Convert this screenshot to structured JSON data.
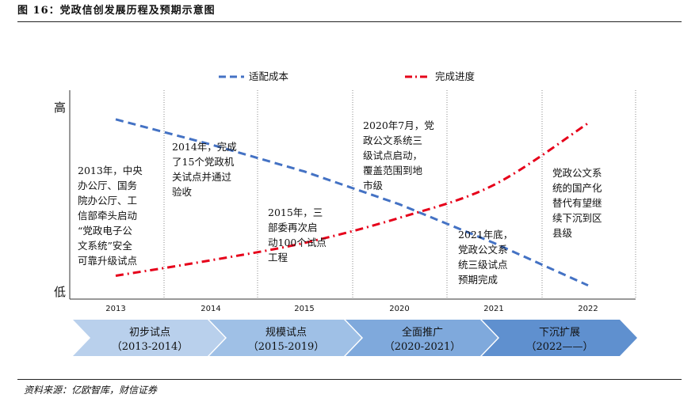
{
  "figure_title": "图 16：党政信创发展历程及预期示意图",
  "source": "资料来源：亿欧智库，财信证券",
  "chart_data": {
    "type": "line",
    "x": [
      "2013",
      "2014",
      "2015",
      "2020",
      "2021",
      "2022"
    ],
    "y_axis_labels": {
      "high": "高",
      "low": "低"
    },
    "series": [
      {
        "name": "适配成本",
        "color": "#4472C4",
        "style": "dashed",
        "values": [
          0.89,
          0.76,
          0.62,
          0.45,
          0.25,
          0.03
        ]
      },
      {
        "name": "完成进度",
        "color": "#E6001A",
        "style": "dash-dot",
        "values": [
          0.08,
          0.16,
          0.25,
          0.38,
          0.55,
          0.87
        ]
      }
    ],
    "annotations": [
      {
        "lines": [
          "2013年，中央",
          "办公厅、国务",
          "院办公厅、工",
          "信部牵头启动",
          "“党政电子公",
          "文系统”安全",
          "可靠升级试点"
        ]
      },
      {
        "lines": [
          "2014年，完成",
          "了15个党政机",
          "关试点并通过",
          "验收"
        ]
      },
      {
        "lines": [
          "2015年，三",
          "部委再次启",
          "动100个试点",
          "工程"
        ]
      },
      {
        "lines": [
          "2020年7月，党",
          "政公文系统三",
          "级试点启动，",
          "覆盖范围到地",
          "市级"
        ]
      },
      {
        "lines": [
          "2021年底，",
          "党政公文系",
          "统三级试点",
          "预期完成"
        ]
      },
      {
        "lines": [
          "党政公文系",
          "统的国产化",
          "替代有望继",
          "续下沉到区",
          "县级"
        ]
      }
    ],
    "phases": [
      {
        "name": "初步试点",
        "period": "（2013-2014）",
        "color": "#B9D0EC"
      },
      {
        "name": "规模试点",
        "period": "（2015-2019）",
        "color": "#9FC0E6"
      },
      {
        "name": "全面推广",
        "period": "（2020-2021）",
        "color": "#7FA9DC"
      },
      {
        "name": "下沉扩展",
        "period": "（2022——）",
        "color": "#5F90CF"
      }
    ],
    "grid": "vertical dotted separators",
    "legend_position": "top"
  }
}
